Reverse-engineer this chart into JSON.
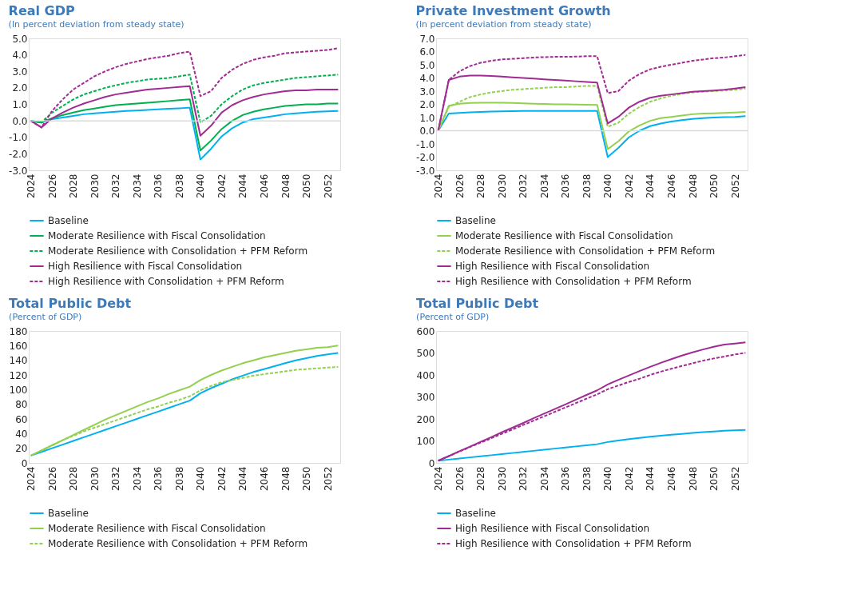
{
  "chart_data": [
    {
      "type": "line",
      "title": "Real GDP",
      "subtitle": "(In percent deviation from steady state)",
      "categories": [
        "2024",
        null,
        "2026",
        null,
        "2028",
        null,
        "2030",
        null,
        "2032",
        null,
        "2034",
        null,
        "2036",
        null,
        "2038",
        null,
        "2040",
        null,
        "2042",
        null,
        "2044",
        null,
        "2046",
        null,
        "2048",
        null,
        "2050",
        null,
        "2052",
        null
      ],
      "ylim": [
        -3,
        5
      ],
      "yticks": [
        {
          "value": -3,
          "label": "-3.0"
        },
        {
          "value": -2,
          "label": "-2.0"
        },
        {
          "value": -1,
          "label": "-1.0"
        },
        {
          "value": 0,
          "label": "0.0"
        },
        {
          "value": 1,
          "label": "1.0"
        },
        {
          "value": 2,
          "label": "2.0"
        },
        {
          "value": 3,
          "label": "3.0"
        },
        {
          "value": 4,
          "label": "4.0"
        },
        {
          "value": 5,
          "label": "5.0"
        }
      ],
      "grid": false,
      "legend": "bottom",
      "ref_lines": [
        {
          "axis": "y",
          "value": 0,
          "color": "#d9d9d9"
        }
      ],
      "series": [
        {
          "name": "Baseline",
          "color": "#00b0f0",
          "line_style": "solid",
          "values": [
            0,
            -0.1,
            0.1,
            0.2,
            0.3,
            0.4,
            0.45,
            0.5,
            0.55,
            0.6,
            0.63,
            0.66,
            0.7,
            0.73,
            0.76,
            0.8,
            -2.35,
            -1.7,
            -0.95,
            -0.45,
            -0.1,
            0.1,
            0.2,
            0.3,
            0.4,
            0.45,
            0.5,
            0.55,
            0.57,
            0.6
          ]
        },
        {
          "name": "Moderate Resilience with Fiscal Consolidation",
          "color": "#00b050",
          "line_style": "solid",
          "values": [
            0,
            -0.1,
            0.15,
            0.35,
            0.5,
            0.65,
            0.75,
            0.85,
            0.95,
            1.0,
            1.05,
            1.1,
            1.15,
            1.2,
            1.25,
            1.3,
            -1.8,
            -1.2,
            -0.5,
            0.0,
            0.35,
            0.55,
            0.7,
            0.8,
            0.9,
            0.95,
            1.0,
            1.0,
            1.05,
            1.05
          ]
        },
        {
          "name": "Moderate Resilience with Consolidation + PFM Reform",
          "color": "#00b050",
          "line_style": "dashed",
          "values": [
            0,
            -0.1,
            0.5,
            0.9,
            1.3,
            1.6,
            1.8,
            2.0,
            2.15,
            2.3,
            2.4,
            2.5,
            2.55,
            2.6,
            2.7,
            2.8,
            -0.1,
            0.3,
            1.0,
            1.5,
            1.9,
            2.15,
            2.3,
            2.4,
            2.5,
            2.6,
            2.65,
            2.7,
            2.75,
            2.8
          ]
        },
        {
          "name": "High Resilience with Fiscal Consolidation",
          "color": "#a02b93",
          "line_style": "solid",
          "values": [
            0,
            -0.4,
            0.15,
            0.5,
            0.8,
            1.05,
            1.25,
            1.45,
            1.6,
            1.7,
            1.8,
            1.9,
            1.95,
            2.0,
            2.05,
            2.1,
            -0.9,
            -0.3,
            0.5,
            0.95,
            1.25,
            1.45,
            1.6,
            1.7,
            1.8,
            1.85,
            1.85,
            1.9,
            1.9,
            1.9
          ]
        },
        {
          "name": "High Resilience with Consolidation + PFM Reform",
          "color": "#a02b93",
          "line_style": "dashed",
          "values": [
            0,
            -0.4,
            0.6,
            1.3,
            1.9,
            2.3,
            2.7,
            3.0,
            3.25,
            3.45,
            3.6,
            3.75,
            3.85,
            3.95,
            4.1,
            4.2,
            1.5,
            1.8,
            2.6,
            3.1,
            3.45,
            3.7,
            3.85,
            3.95,
            4.1,
            4.15,
            4.2,
            4.25,
            4.3,
            4.4
          ]
        }
      ]
    },
    {
      "type": "line",
      "title": "Private Investment Growth",
      "subtitle": "(In percent deviation from steady state)",
      "categories": [
        "2024",
        null,
        "2026",
        null,
        "2028",
        null,
        "2030",
        null,
        "2032",
        null,
        "2034",
        null,
        "2036",
        null,
        "2038",
        null,
        "2040",
        null,
        "2042",
        null,
        "2044",
        null,
        "2046",
        null,
        "2048",
        null,
        "2050",
        null,
        "2052",
        null
      ],
      "ylim": [
        -3,
        7
      ],
      "yticks": [
        {
          "value": -3,
          "label": "-3.0"
        },
        {
          "value": -2,
          "label": "-2.0"
        },
        {
          "value": -1,
          "label": "-1.0"
        },
        {
          "value": 0,
          "label": "0.0"
        },
        {
          "value": 1,
          "label": "1.0"
        },
        {
          "value": 2,
          "label": "2.0"
        },
        {
          "value": 3,
          "label": "3.0"
        },
        {
          "value": 4,
          "label": "4.0"
        },
        {
          "value": 5,
          "label": "5.0"
        },
        {
          "value": 6,
          "label": "6.0"
        },
        {
          "value": 7,
          "label": "7.0"
        }
      ],
      "grid": false,
      "legend": "bottom",
      "ref_lines": [
        {
          "axis": "y",
          "value": 0,
          "color": "#d9d9d9"
        }
      ],
      "series": [
        {
          "name": "Baseline",
          "color": "#00b0f0",
          "line_style": "solid",
          "values": [
            0,
            1.3,
            1.35,
            1.4,
            1.42,
            1.45,
            1.47,
            1.48,
            1.5,
            1.5,
            1.5,
            1.5,
            1.5,
            1.5,
            1.5,
            1.5,
            -2.0,
            -1.3,
            -0.5,
            0.0,
            0.35,
            0.55,
            0.7,
            0.8,
            0.9,
            0.95,
            1.0,
            1.03,
            1.05,
            1.1
          ]
        },
        {
          "name": "Moderate Resilience with Fiscal Consolidation",
          "color": "#92d050",
          "line_style": "solid",
          "values": [
            0,
            1.9,
            2.05,
            2.1,
            2.12,
            2.12,
            2.12,
            2.1,
            2.08,
            2.05,
            2.03,
            2.0,
            2.0,
            1.98,
            1.97,
            1.95,
            -1.4,
            -0.8,
            -0.05,
            0.4,
            0.75,
            0.95,
            1.05,
            1.15,
            1.25,
            1.3,
            1.32,
            1.35,
            1.38,
            1.42
          ]
        },
        {
          "name": "Moderate Resilience with Consolidation + PFM Reform",
          "color": "#92d050",
          "line_style": "dashed",
          "values": [
            0,
            1.8,
            2.2,
            2.55,
            2.75,
            2.9,
            3.0,
            3.1,
            3.15,
            3.2,
            3.25,
            3.3,
            3.3,
            3.35,
            3.4,
            3.4,
            0.3,
            0.6,
            1.3,
            1.8,
            2.2,
            2.45,
            2.65,
            2.8,
            2.9,
            2.95,
            3.0,
            3.05,
            3.1,
            3.2
          ]
        },
        {
          "name": "High Resilience with Fiscal Consolidation",
          "color": "#a02b93",
          "line_style": "solid",
          "values": [
            0,
            3.85,
            4.1,
            4.18,
            4.18,
            4.15,
            4.1,
            4.05,
            4.0,
            3.95,
            3.9,
            3.85,
            3.8,
            3.75,
            3.7,
            3.65,
            0.55,
            1.05,
            1.75,
            2.2,
            2.5,
            2.65,
            2.75,
            2.85,
            2.95,
            3.0,
            3.05,
            3.1,
            3.2,
            3.3
          ]
        },
        {
          "name": "High Resilience with Consolidation + PFM Reform",
          "color": "#a02b93",
          "line_style": "dashed",
          "values": [
            0,
            3.85,
            4.5,
            4.9,
            5.15,
            5.3,
            5.4,
            5.45,
            5.5,
            5.55,
            5.58,
            5.6,
            5.6,
            5.62,
            5.65,
            5.65,
            2.85,
            3.0,
            3.8,
            4.3,
            4.65,
            4.85,
            5.0,
            5.15,
            5.3,
            5.4,
            5.5,
            5.55,
            5.65,
            5.75
          ]
        }
      ]
    },
    {
      "type": "line",
      "title": "Total Public Debt",
      "subtitle": "(Percent of GDP)",
      "categories": [
        "2024",
        null,
        "2026",
        null,
        "2028",
        null,
        "2030",
        null,
        "2032",
        null,
        "2034",
        null,
        "2036",
        null,
        "2038",
        null,
        "2040",
        null,
        "2042",
        null,
        "2044",
        null,
        "2046",
        null,
        "2048",
        null,
        "2050",
        null,
        "2052",
        null
      ],
      "ylim": [
        0,
        180
      ],
      "yticks": [
        0,
        20,
        40,
        60,
        80,
        100,
        120,
        140,
        160,
        180
      ],
      "grid": false,
      "legend": "bottom",
      "series": [
        {
          "name": "Baseline",
          "color": "#00b0f0",
          "line_style": "solid",
          "values": [
            10,
            15,
            20,
            25,
            30,
            35,
            40,
            45,
            50,
            55,
            60,
            65,
            70,
            75,
            80,
            85,
            95,
            102,
            108,
            114,
            119,
            124,
            128,
            132,
            136,
            140,
            143,
            146,
            148,
            150
          ]
        },
        {
          "name": "Moderate Resilience with Fiscal Consolidation",
          "color": "#92d050",
          "line_style": "solid",
          "values": [
            10,
            17,
            24,
            31,
            38,
            45,
            52,
            59,
            65,
            71,
            77,
            83,
            88,
            94,
            99,
            104,
            113,
            120,
            126,
            131,
            136,
            140,
            144,
            147,
            150,
            153,
            155,
            157,
            158,
            160
          ]
        },
        {
          "name": "Moderate Resilience with Consolidation + PFM Reform",
          "color": "#92d050",
          "line_style": "dashed",
          "values": [
            10,
            17,
            24,
            31,
            37,
            43,
            48,
            53,
            58,
            63,
            68,
            73,
            77,
            82,
            86,
            91,
            99,
            105,
            110,
            113,
            116,
            119,
            121,
            123,
            125,
            127,
            128,
            129,
            130,
            131
          ]
        }
      ]
    },
    {
      "type": "line",
      "title": "Total Public Debt",
      "subtitle": "(Percent of GDP)",
      "categories": [
        "2024",
        null,
        "2026",
        null,
        "2028",
        null,
        "2030",
        null,
        "2032",
        null,
        "2034",
        null,
        "2036",
        null,
        "2038",
        null,
        "2040",
        null,
        "2042",
        null,
        "2044",
        null,
        "2046",
        null,
        "2048",
        null,
        "2050",
        null,
        "2052",
        null
      ],
      "ylim": [
        0,
        600
      ],
      "yticks": [
        0,
        100,
        200,
        300,
        400,
        500,
        600
      ],
      "grid": false,
      "legend": "bottom",
      "series": [
        {
          "name": "Baseline",
          "color": "#00b0f0",
          "line_style": "solid",
          "values": [
            10,
            15,
            20,
            25,
            30,
            35,
            40,
            45,
            50,
            55,
            60,
            65,
            70,
            75,
            80,
            85,
            95,
            102,
            108,
            114,
            119,
            124,
            128,
            132,
            136,
            140,
            143,
            146,
            148,
            150
          ]
        },
        {
          "name": "High Resilience with Fiscal Consolidation",
          "color": "#a02b93",
          "line_style": "solid",
          "values": [
            10,
            31,
            53,
            74,
            96,
            117,
            139,
            160,
            181,
            203,
            224,
            245,
            266,
            288,
            309,
            330,
            357,
            378,
            398,
            418,
            437,
            455,
            472,
            488,
            503,
            516,
            528,
            538,
            543,
            548
          ]
        },
        {
          "name": "High Resilience with Consolidation + PFM Reform",
          "color": "#a02b93",
          "line_style": "dashed",
          "values": [
            10,
            31,
            52,
            72,
            92,
            112,
            132,
            152,
            172,
            192,
            212,
            232,
            252,
            272,
            292,
            312,
            335,
            352,
            368,
            383,
            400,
            415,
            428,
            441,
            453,
            465,
            475,
            484,
            493,
            501
          ]
        }
      ]
    }
  ]
}
